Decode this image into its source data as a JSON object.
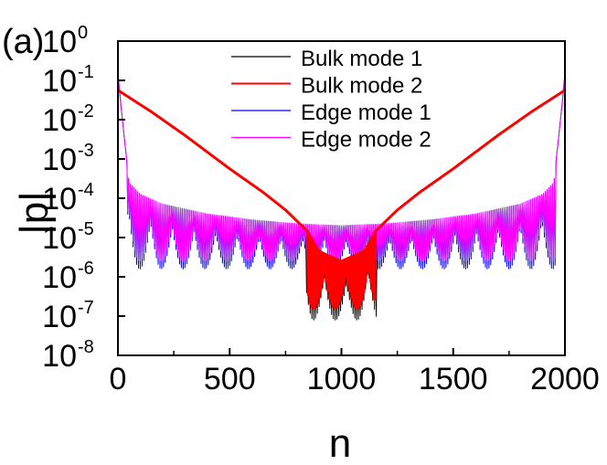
{
  "chart_data": {
    "type": "line",
    "panel_label": "(a)",
    "xlabel": "n",
    "ylabel": "|p|",
    "xlim": [
      0,
      2000
    ],
    "ylim_log10": [
      -8,
      0
    ],
    "yscale": "log",
    "x_ticks": [
      {
        "value": 0,
        "label": "0"
      },
      {
        "value": 500,
        "label": "500"
      },
      {
        "value": 1000,
        "label": "1000"
      },
      {
        "value": 1500,
        "label": "1500"
      },
      {
        "value": 2000,
        "label": "2000"
      }
    ],
    "y_ticks": [
      {
        "exp": 0,
        "base": "10",
        "sup": "0"
      },
      {
        "exp": -1,
        "base": "10",
        "sup": "-1"
      },
      {
        "exp": -2,
        "base": "10",
        "sup": "-2"
      },
      {
        "exp": -3,
        "base": "10",
        "sup": "-3"
      },
      {
        "exp": -4,
        "base": "10",
        "sup": "-4"
      },
      {
        "exp": -5,
        "base": "10",
        "sup": "-5"
      },
      {
        "exp": -6,
        "base": "10",
        "sup": "-6"
      },
      {
        "exp": -7,
        "base": "10",
        "sup": "-7"
      },
      {
        "exp": -8,
        "base": "10",
        "sup": "-8"
      }
    ],
    "legend_position": "top-right",
    "series": [
      {
        "name": "Bulk mode 1",
        "color": "#000000",
        "envelope": [
          [
            0,
            -1.25
          ],
          [
            150,
            -1.8
          ],
          [
            300,
            -2.4
          ],
          [
            500,
            -3.25
          ],
          [
            650,
            -3.85
          ],
          [
            750,
            -4.3
          ],
          [
            850,
            -4.85
          ],
          [
            900,
            -5.35
          ],
          [
            1000,
            -5.8
          ],
          [
            1100,
            -5.35
          ],
          [
            1150,
            -4.85
          ],
          [
            1250,
            -4.3
          ],
          [
            1350,
            -3.85
          ],
          [
            1500,
            -3.25
          ],
          [
            1700,
            -2.4
          ],
          [
            1850,
            -1.8
          ],
          [
            2000,
            -1.25
          ]
        ],
        "oscillation": {
          "from": 840,
          "to": 1160,
          "dips_to": -7.1
        }
      },
      {
        "name": "Bulk mode 2",
        "color": "#ff0000",
        "envelope": [
          [
            0,
            -1.25
          ],
          [
            150,
            -1.8
          ],
          [
            300,
            -2.4
          ],
          [
            500,
            -3.25
          ],
          [
            650,
            -3.85
          ],
          [
            750,
            -4.3
          ],
          [
            850,
            -4.85
          ],
          [
            900,
            -5.35
          ],
          [
            1000,
            -5.6
          ],
          [
            1100,
            -5.35
          ],
          [
            1150,
            -4.85
          ],
          [
            1250,
            -4.3
          ],
          [
            1350,
            -3.85
          ],
          [
            1500,
            -3.25
          ],
          [
            1700,
            -2.4
          ],
          [
            1850,
            -1.8
          ],
          [
            2000,
            -1.25
          ]
        ],
        "oscillation": {
          "from": 850,
          "to": 1150,
          "dips_to": -6.8
        }
      },
      {
        "name": "Edge mode 1",
        "color": "#0000ff",
        "envelope": [
          [
            0,
            -0.9
          ],
          [
            20,
            -2.0
          ],
          [
            50,
            -3.6
          ],
          [
            100,
            -3.9
          ],
          [
            200,
            -4.15
          ],
          [
            400,
            -4.4
          ],
          [
            600,
            -4.55
          ],
          [
            800,
            -4.65
          ],
          [
            1000,
            -4.7
          ],
          [
            1200,
            -4.65
          ],
          [
            1400,
            -4.55
          ],
          [
            1600,
            -4.4
          ],
          [
            1800,
            -4.15
          ],
          [
            1900,
            -3.9
          ],
          [
            1950,
            -3.6
          ],
          [
            1980,
            -2.0
          ],
          [
            2000,
            -0.9
          ]
        ],
        "oscillation": {
          "from": 40,
          "to": 1960,
          "dips_to": -5.8
        }
      },
      {
        "name": "Edge mode 2",
        "color": "#ff00ff",
        "envelope": [
          [
            0,
            -0.8
          ],
          [
            20,
            -2.0
          ],
          [
            50,
            -3.6
          ],
          [
            100,
            -3.9
          ],
          [
            200,
            -4.15
          ],
          [
            400,
            -4.4
          ],
          [
            600,
            -4.55
          ],
          [
            800,
            -4.65
          ],
          [
            1000,
            -4.7
          ],
          [
            1200,
            -4.65
          ],
          [
            1400,
            -4.55
          ],
          [
            1600,
            -4.4
          ],
          [
            1800,
            -4.15
          ],
          [
            1900,
            -3.9
          ],
          [
            1950,
            -3.6
          ],
          [
            1980,
            -2.0
          ],
          [
            2000,
            -0.8
          ]
        ],
        "oscillation": {
          "from": 40,
          "to": 1960,
          "dips_to": -5.6
        }
      }
    ]
  }
}
